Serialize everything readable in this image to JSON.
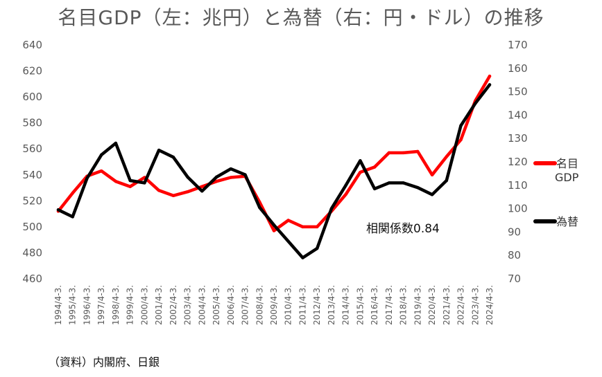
{
  "chart_data": {
    "type": "line",
    "title": "名目GDP（左：兆円）と為替（右：円・ドル）の推移",
    "categories": [
      "1994/4-3.",
      "1995/4-3.",
      "1996/4-3.",
      "1997/4-3.",
      "1998/4-3.",
      "1999/4-3.",
      "2000/4-3.",
      "2001/4-3.",
      "2002/4-3.",
      "2003/4-3.",
      "2004/4-3.",
      "2005/4-3.",
      "2006/4-3.",
      "2007/4-3.",
      "2008/4-3.",
      "2009/4-3.",
      "2010/4-3.",
      "2011/4-3.",
      "2012/4-3.",
      "2013/4-3.",
      "2014/4-3.",
      "2015/4-3.",
      "2016/4-3.",
      "2017/4-3.",
      "2018/4-3.",
      "2019/4-3.",
      "2020/4-3.",
      "2021/4-3.",
      "2022/4-3.",
      "2023/4-3.",
      "2024/4-3."
    ],
    "y_left": {
      "ylim": [
        460,
        640
      ],
      "ticks": [
        "460",
        "480",
        "500",
        "520",
        "540",
        "560",
        "580",
        "600",
        "620",
        "640"
      ]
    },
    "y_right": {
      "ylim": [
        70,
        170
      ],
      "ticks": [
        "70",
        "80",
        "90",
        "100",
        "110",
        "120",
        "130",
        "140",
        "150",
        "160",
        "170"
      ]
    },
    "series": [
      {
        "name": "名目GDP",
        "axis": "left",
        "color": "#ff0000",
        "values": [
          512,
          526,
          539,
          543,
          535,
          531,
          538,
          528,
          524,
          527,
          531,
          535,
          538,
          539,
          519,
          497,
          505,
          500,
          500,
          512,
          525,
          542,
          546,
          557,
          557,
          558,
          540,
          554,
          567,
          597,
          616
        ]
      },
      {
        "name": "為替",
        "axis": "right",
        "color": "#000000",
        "values": [
          99.5,
          96.5,
          113,
          123,
          128,
          112,
          111,
          125,
          122,
          113.5,
          107.5,
          113.5,
          117,
          114.5,
          100.5,
          93,
          86,
          79,
          83,
          100,
          110,
          120.5,
          108.5,
          111,
          111,
          109,
          106,
          112,
          135.5,
          145,
          153
        ]
      }
    ],
    "annotation": "相関係数0.84",
    "legend_position": "right",
    "grid": false
  },
  "source_note": "（資料）内閣府、日銀",
  "legend": [
    {
      "label_lines": [
        "名目",
        "GDP"
      ],
      "color": "#ff0000"
    },
    {
      "label_lines": [
        "為替"
      ],
      "color": "#000000"
    }
  ]
}
